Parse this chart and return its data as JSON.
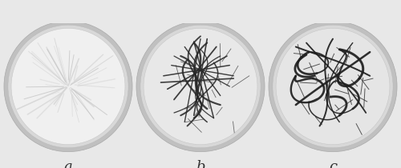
{
  "fig_bg": "#e8e8e8",
  "panel_bg": "#ffffff",
  "panel_labels": [
    "a",
    "b",
    "c"
  ],
  "label_fontsize": 13,
  "dish_outer_color": "#c8c8c8",
  "dish_rim_color": "#b0b0b0",
  "dish_inner_color_a": "#f0f0f0",
  "dish_inner_color_b": "#e8e8e8",
  "dish_inner_color_c": "#e5e5e5",
  "root_color_a": "#d8d8d8",
  "root_color_b": "#383838",
  "root_color_c": "#252525",
  "seed_a": 42,
  "seed_b": 77,
  "seed_c": 13
}
